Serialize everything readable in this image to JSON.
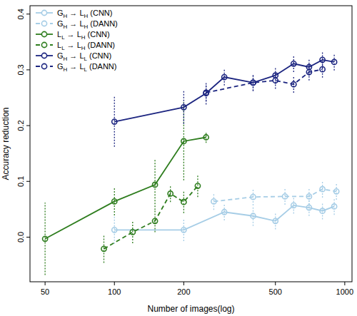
{
  "chart_data": {
    "type": "line",
    "x_label": "Number of images(log)",
    "y_label": "Accuracy reduction",
    "log": "x",
    "legend": "top-left",
    "xlim": [
      43,
      1075
    ],
    "ylim": [
      -0.08,
      0.415
    ],
    "xticks": [
      50,
      100,
      200,
      500,
      1000
    ],
    "yticks": [
      {
        "value": 0,
        "label": "0.0"
      },
      0.1,
      0.2,
      0.3,
      0.4
    ],
    "series": [
      {
        "name": "GH → LH (CNN)",
        "color": "#a6cde6",
        "line_style": "solid",
        "marker": "circle",
        "x": [
          100,
          200,
          300,
          400,
          500,
          600,
          700,
          800,
          900
        ],
        "values": [
          0.013,
          0.013,
          0.045,
          0.038,
          0.029,
          0.057,
          0.053,
          0.047,
          0.055
        ],
        "errors": [
          0.025,
          0.02,
          0.015,
          0.018,
          0.015,
          0.015,
          0.015,
          0.015,
          0.015
        ]
      },
      {
        "name": "GH → LH (DANN)",
        "color": "#a6cde6",
        "line_style": "dashed",
        "marker": "circle",
        "x": [
          270,
          400,
          550,
          700,
          800,
          920
        ],
        "values": [
          0.064,
          0.072,
          0.073,
          0.073,
          0.086,
          0.082
        ],
        "errors": [
          0.015,
          0.015,
          0.015,
          0.015,
          0.015,
          0.015
        ]
      },
      {
        "name": "LL → LH (CNN)",
        "color": "#2e7d1e",
        "line_style": "solid",
        "marker": "circle",
        "x": [
          50,
          100,
          150,
          200,
          250
        ],
        "values": [
          -0.003,
          0.064,
          0.094,
          0.172,
          0.179
        ],
        "errors": [
          0.065,
          0.025,
          0.045,
          0.07,
          0.01
        ]
      },
      {
        "name": "LL → LH (DANN)",
        "color": "#2e7d1e",
        "line_style": "dashed",
        "marker": "circle",
        "x": [
          90,
          120,
          150,
          175,
          200,
          230
        ],
        "values": [
          -0.021,
          0.009,
          0.029,
          0.078,
          0.063,
          0.092
        ],
        "errors": [
          0.025,
          0.02,
          0.02,
          0.015,
          0.02,
          0.02
        ]
      },
      {
        "name": "GH → LL (CNN)",
        "color": "#1c2580",
        "line_style": "solid",
        "marker": "circle",
        "x": [
          100,
          200,
          250,
          300,
          400,
          500,
          600,
          700,
          800,
          900
        ],
        "values": [
          0.207,
          0.233,
          0.258,
          0.287,
          0.277,
          0.29,
          0.311,
          0.305,
          0.318,
          0.314
        ],
        "errors": [
          0.045,
          0.03,
          0.02,
          0.015,
          0.015,
          0.015,
          0.015,
          0.015,
          0.015,
          0.015
        ]
      },
      {
        "name": "GH → LL (DANN)",
        "color": "#1c2580",
        "line_style": "dashed",
        "marker": "circle",
        "x": [
          250,
          400,
          500,
          600,
          700,
          800
        ],
        "values": [
          0.259,
          0.277,
          0.281,
          0.274,
          0.296,
          0.301
        ],
        "errors": [
          0.015,
          0.015,
          0.015,
          0.015,
          0.015,
          0.015
        ]
      }
    ]
  }
}
